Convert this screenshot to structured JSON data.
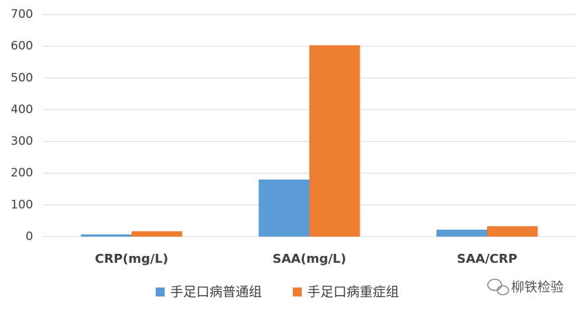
{
  "chart_data": {
    "type": "bar",
    "categories": [
      "CRP(mg/L)",
      "SAA(mg/L)",
      "SAA/CRP"
    ],
    "series": [
      {
        "name": "手足口病普通组",
        "color": "#5b9bd5",
        "values": [
          7,
          180,
          22
        ]
      },
      {
        "name": "手足口病重症组",
        "color": "#ed7d31",
        "values": [
          17,
          603,
          33
        ]
      }
    ],
    "ylim": [
      0,
      700
    ],
    "yticks": [
      0,
      100,
      200,
      300,
      400,
      500,
      600,
      700
    ],
    "grid": true,
    "legend": "bottom",
    "watermark": "柳铁检验"
  }
}
